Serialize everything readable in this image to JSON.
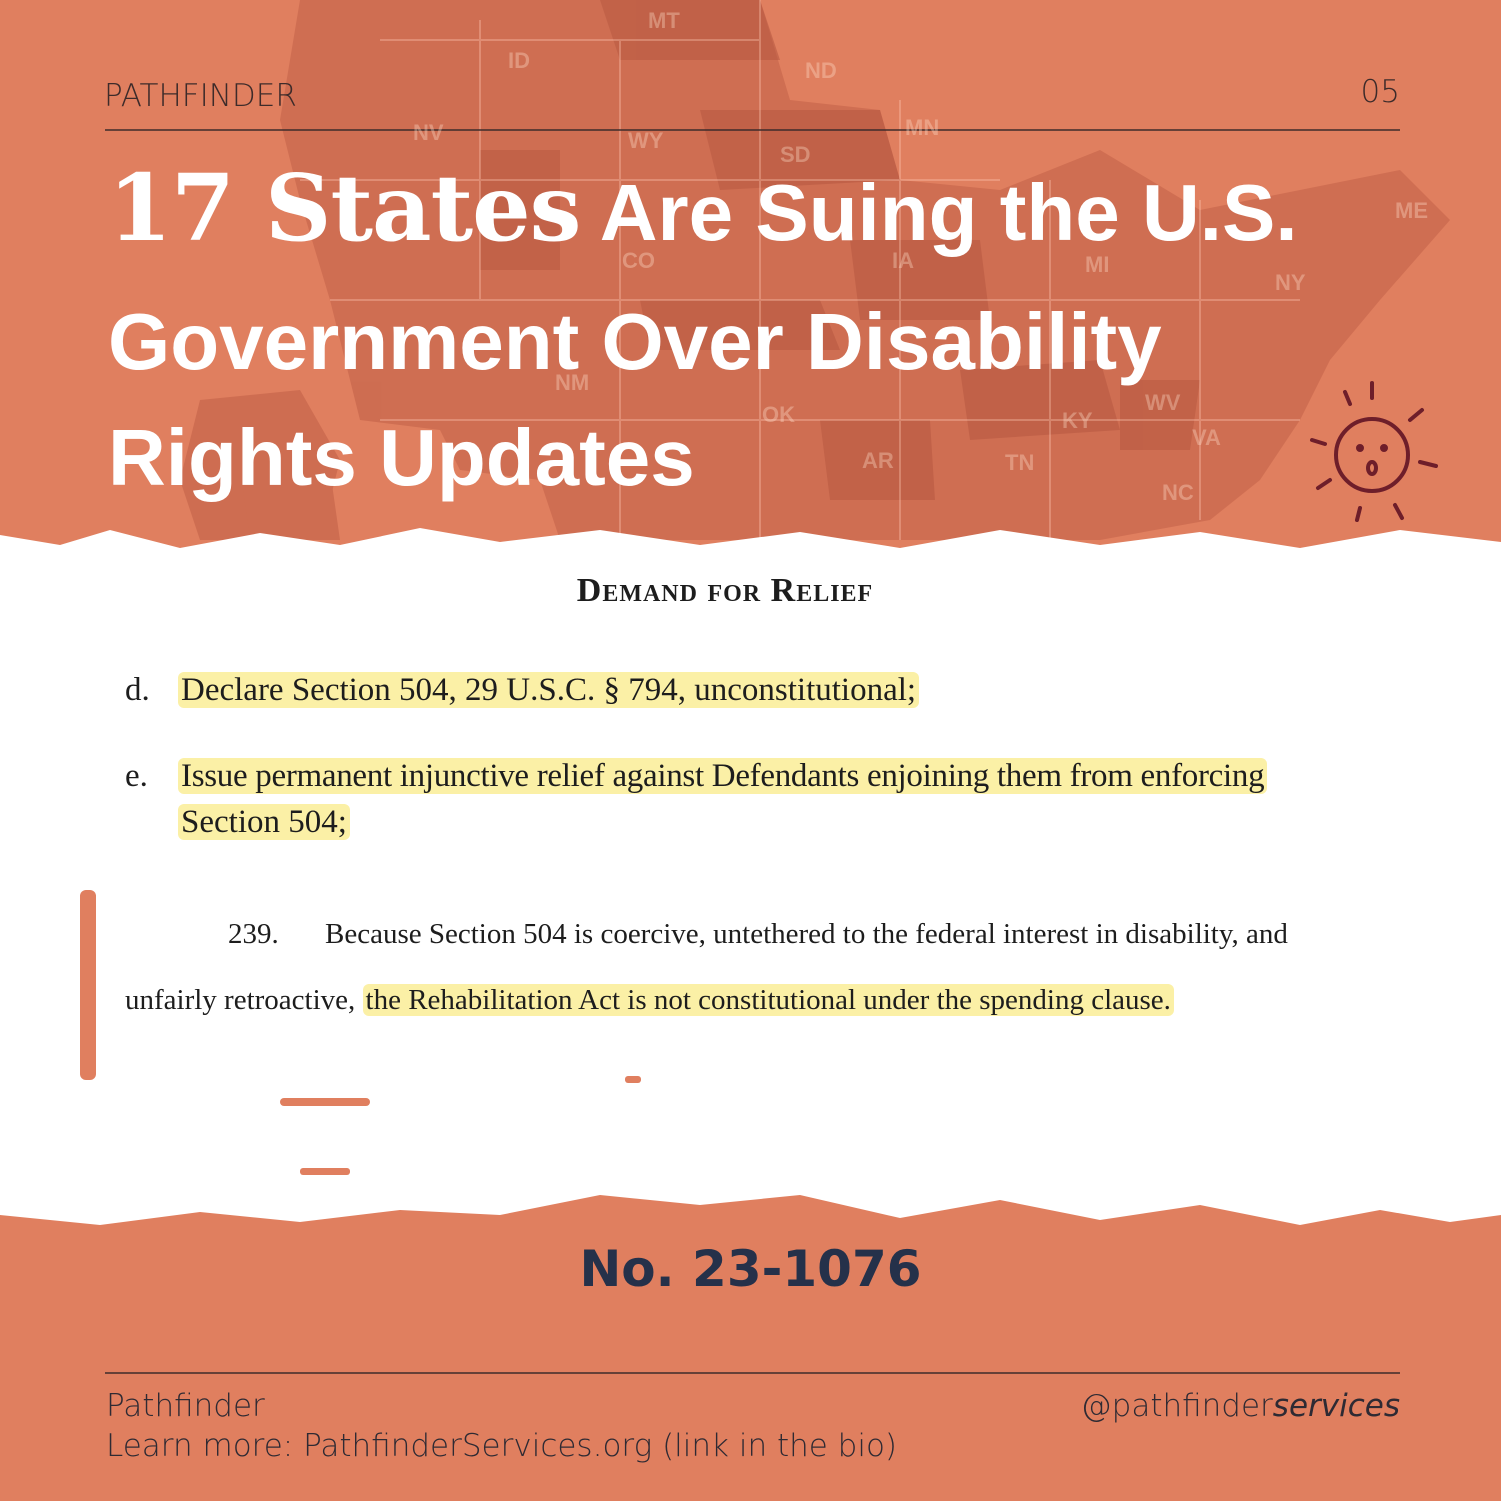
{
  "header": {
    "brand": "PATHFINDER",
    "page": "05"
  },
  "title": {
    "emphasis": "17 States",
    "lines": [
      "Are Suing the U.S.",
      "Government Over Disability",
      "Rights Updates"
    ]
  },
  "map_labels": [
    "MT",
    "ID",
    "ND",
    "NV",
    "WY",
    "SD",
    "MN",
    "ME",
    "CO",
    "IA",
    "MI",
    "NY",
    "NM",
    "OK",
    "KY",
    "WV",
    "VA",
    "AR",
    "TN",
    "NC"
  ],
  "document": {
    "heading": "Demand for Relief",
    "items": [
      {
        "marker": "d.",
        "lines": [
          "Declare Section 504, 29 U.S.C. § 794, unconstitutional;"
        ]
      },
      {
        "marker": "e.",
        "lines": [
          "Issue permanent injunctive relief against Defendants enjoining them from enforcing",
          "Section 504;"
        ]
      }
    ],
    "paragraph": {
      "number": "239.",
      "line1": "Because Section 504 is coercive, untethered to the federal interest in disability, and",
      "line2_plain": "unfairly retroactive,",
      "line2_highlight": "the Rehabilitation Act is not constitutional under the spending clause."
    }
  },
  "case_number": "No. 23-1076",
  "footer": {
    "brand": "Pathfinder",
    "learn_more": "Learn more: PathfinderServices.org (link in the bio)",
    "handle": "@pathfinder",
    "handle_italic": "services"
  }
}
